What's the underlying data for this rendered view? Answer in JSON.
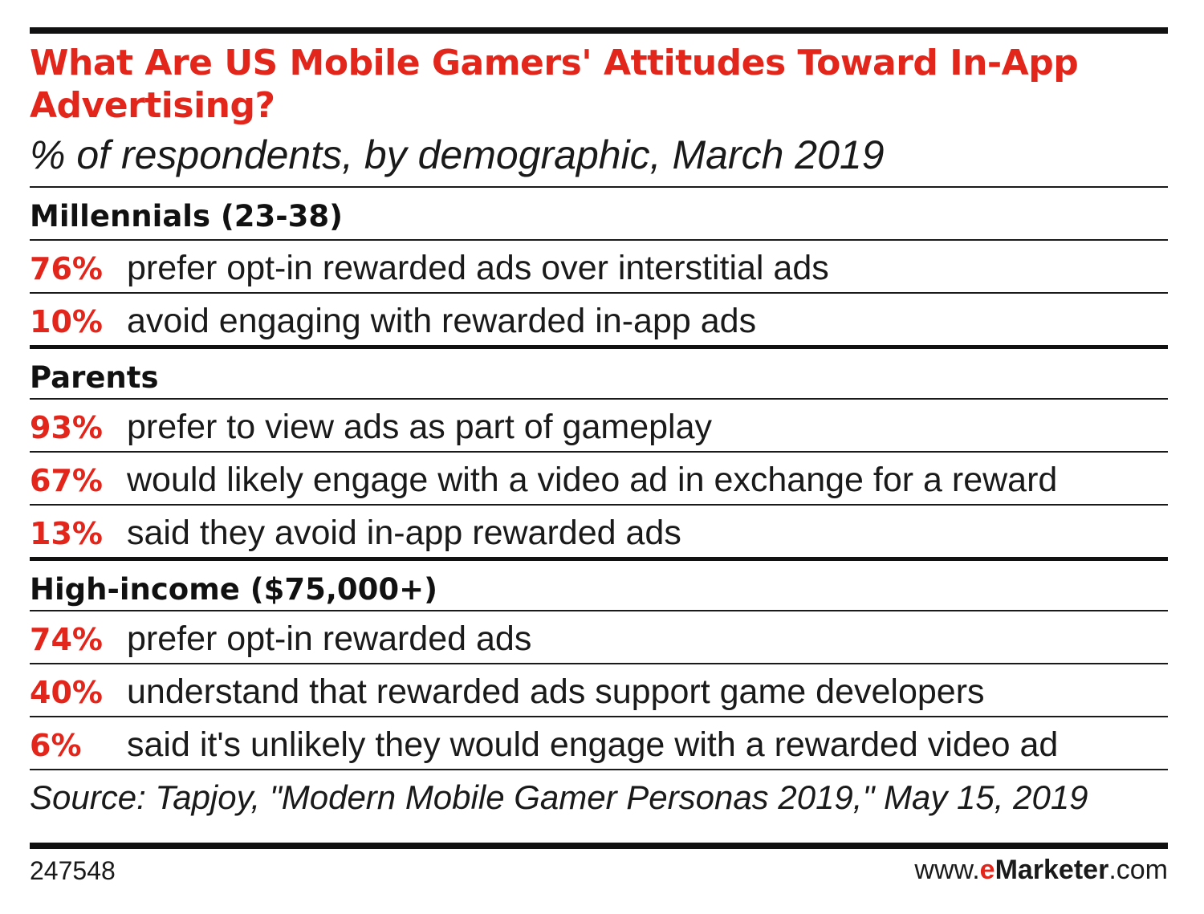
{
  "chart_data": {
    "type": "table",
    "title": "What Are US Mobile Gamers' Attitudes Toward In-App Advertising?",
    "subtitle": "% of respondents, by demographic, March 2019",
    "groups": [
      {
        "name": "Millennials (23-38)",
        "rows": [
          {
            "value": 76,
            "label": "76%",
            "text": "prefer opt-in rewarded ads over interstitial ads"
          },
          {
            "value": 10,
            "label": "10%",
            "text": "avoid engaging with rewarded in-app ads"
          }
        ]
      },
      {
        "name": "Parents",
        "rows": [
          {
            "value": 93,
            "label": "93%",
            "text": "prefer to view ads as part of gameplay"
          },
          {
            "value": 67,
            "label": "67%",
            "text": "would likely engage with a video ad in exchange for a reward"
          },
          {
            "value": 13,
            "label": "13%",
            "text": "said they avoid in-app rewarded ads"
          }
        ]
      },
      {
        "name": "High-income ($75,000+)",
        "rows": [
          {
            "value": 74,
            "label": "74%",
            "text": "prefer opt-in rewarded ads"
          },
          {
            "value": 40,
            "label": "40%",
            "text": "understand that rewarded ads support game developers"
          },
          {
            "value": 6,
            "label": "6%",
            "text": "said it's unlikely they would engage with a rewarded video ad"
          }
        ]
      }
    ],
    "source": "Source: Tapjoy, \"Modern Mobile Gamer Personas 2019,\" May 15, 2019"
  },
  "footer": {
    "chart_id": "247548",
    "logo": {
      "prefix": "www.",
      "e": "e",
      "brand": "Marketer",
      "suffix": ".com"
    }
  },
  "colors": {
    "accent": "#e3261c",
    "text": "#1a1a1a",
    "rule": "#111111"
  }
}
